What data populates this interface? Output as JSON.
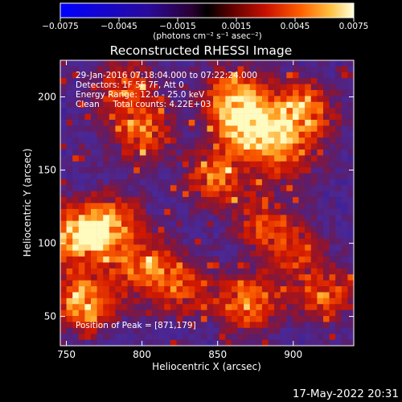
{
  "colorbar": {
    "tick_labels": [
      "−0.0075",
      "−0.0045",
      "−0.0015",
      "0.0015",
      "0.0045",
      "0.0075"
    ],
    "range": [
      -0.0075,
      0.0075
    ],
    "unit_label": "(photons cm⁻² s⁻¹ asec⁻²)"
  },
  "chart_data": {
    "type": "heatmap",
    "title": "Reconstructed RHESSI Image",
    "xlabel": "Heliocentric X (arcsec)",
    "ylabel": "Heliocentric Y (arcsec)",
    "xlim": [
      746,
      940
    ],
    "ylim": [
      30,
      225
    ],
    "x_ticks": [
      750,
      800,
      850,
      900
    ],
    "y_ticks": [
      50,
      100,
      150,
      200
    ],
    "annotations": [
      "29-Jan-2016 07:18:04.000 to 07:22:24.000",
      "Detectors: 1F 5F 7F, Att 0",
      "Energy Range: 12.0 - 25.0 keV",
      "Clean     Total counts: 4.22E+03"
    ],
    "peak_label": "Position of Peak = [871,179]",
    "bright_regions": [
      {
        "x": 760,
        "y": 105,
        "level": 0.95
      },
      {
        "x": 762,
        "y": 60,
        "level": 0.8
      },
      {
        "x": 780,
        "y": 115,
        "level": 0.55
      },
      {
        "x": 800,
        "y": 85,
        "level": 0.6
      },
      {
        "x": 825,
        "y": 70,
        "level": 0.5
      },
      {
        "x": 800,
        "y": 175,
        "level": 0.55
      },
      {
        "x": 790,
        "y": 205,
        "level": 0.5
      },
      {
        "x": 871,
        "y": 179,
        "level": 1.0
      },
      {
        "x": 860,
        "y": 200,
        "level": 0.65
      },
      {
        "x": 905,
        "y": 190,
        "level": 0.8
      },
      {
        "x": 895,
        "y": 160,
        "level": 0.5
      },
      {
        "x": 850,
        "y": 145,
        "level": 0.55
      },
      {
        "x": 880,
        "y": 115,
        "level": 0.45
      },
      {
        "x": 870,
        "y": 60,
        "level": 0.7
      },
      {
        "x": 920,
        "y": 65,
        "level": 0.55
      },
      {
        "x": 900,
        "y": 95,
        "level": 0.4
      }
    ]
  },
  "footer": {
    "date": "17-May-2022 20:31"
  }
}
